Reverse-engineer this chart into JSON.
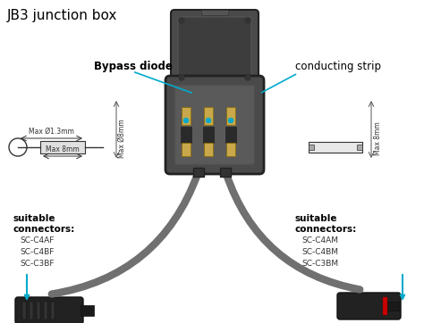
{
  "title": "JB3 junction box",
  "bg_color": "#ffffff",
  "dark_gray": "#3a3a3a",
  "mid_gray": "#5a5a5a",
  "light_gray": "#888888",
  "box_gray": "#666666",
  "gold": "#c8a84b",
  "cyan": "#00aacc",
  "cable_gray": "#707070",
  "connector_dark": "#2a2a2a",
  "label_bypass": "Bypass diode",
  "label_strip": "conducting strip",
  "label_left_head": "suitable\nconnectors:",
  "label_right_head": "suitable\nconnectors:",
  "left_connectors": [
    "SC-C4AF",
    "SC-C4BF",
    "SC-C3BF"
  ],
  "right_connectors": [
    "SC-C4AM",
    "SC-C4BM",
    "SC-C3BM"
  ],
  "diode_dim1": "Max Ø1.3mm",
  "diode_dim2": "Max 8mm",
  "diode_dim3": "Max Ø8mm",
  "strip_dim": "Max 8mm"
}
